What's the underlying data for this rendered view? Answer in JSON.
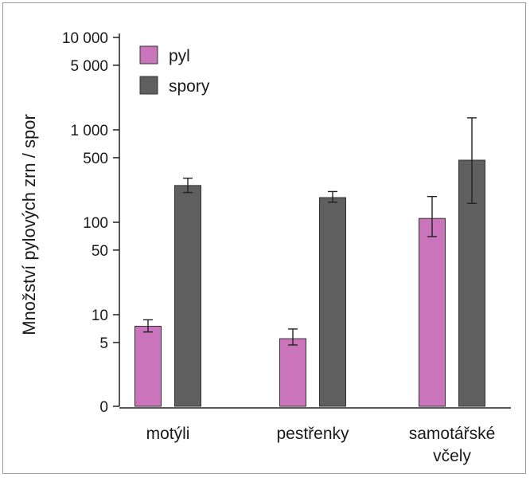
{
  "chart_data": {
    "type": "bar",
    "title": "",
    "xlabel": "",
    "ylabel": "Množství pylových zrn / spor",
    "y_scale": "log",
    "y_ticks": [
      {
        "label": "0",
        "value": 0
      },
      {
        "label": "5",
        "value": 5
      },
      {
        "label": "10",
        "value": 10
      },
      {
        "label": "50",
        "value": 50
      },
      {
        "label": "100",
        "value": 100
      },
      {
        "label": "500",
        "value": 500
      },
      {
        "label": "1 000",
        "value": 1000
      },
      {
        "label": "5 000",
        "value": 5000
      },
      {
        "label": "10 000",
        "value": 10000
      }
    ],
    "categories": [
      {
        "lines": [
          "motýli"
        ]
      },
      {
        "lines": [
          "pestřenky"
        ]
      },
      {
        "lines": [
          "samotářské",
          "včely"
        ]
      }
    ],
    "legend_position": "top-left",
    "series": [
      {
        "name": "pyl",
        "color": "#c974bb",
        "values": [
          7.5,
          5.5,
          110
        ],
        "err_low": [
          6.5,
          4.7,
          70
        ],
        "err_high": [
          8.8,
          7,
          190
        ]
      },
      {
        "name": "spory",
        "color": "#5f5f5f",
        "values": [
          250,
          185,
          470
        ],
        "err_low": [
          210,
          165,
          160
        ],
        "err_high": [
          300,
          215,
          1350
        ]
      }
    ]
  }
}
